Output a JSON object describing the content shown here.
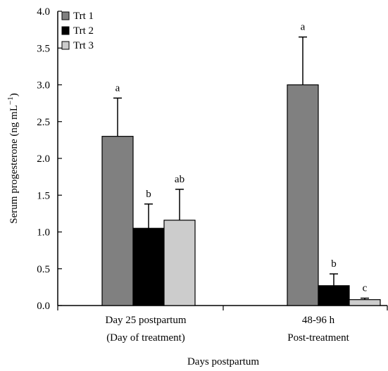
{
  "chart_data": {
    "type": "bar",
    "title": "",
    "ylabel": "Serum progesterone (ng mL",
    "ylabel_superscript": "−1",
    "ylabel_close": ")",
    "xlabel": "Days postpartum",
    "ylim": [
      0,
      4
    ],
    "yticks": [
      "0.0",
      "0.5",
      "1.0",
      "1.5",
      "2.0",
      "2.5",
      "3.0",
      "3.5",
      "4.0"
    ],
    "categories": [
      {
        "line1": "Day 25 postpartum",
        "line2": "(Day of treatment)"
      },
      {
        "line1": "48-96 h",
        "line2": "Post-treatment"
      }
    ],
    "series": [
      {
        "name": "Trt 1",
        "color": "#808080",
        "values": [
          2.3,
          3.0
        ],
        "errors": [
          0.52,
          0.65
        ],
        "labels": [
          "a",
          "a"
        ]
      },
      {
        "name": "Trt 2",
        "color": "#000000",
        "values": [
          1.05,
          0.27
        ],
        "errors": [
          0.33,
          0.16
        ],
        "labels": [
          "b",
          "b"
        ]
      },
      {
        "name": "Trt 3",
        "color": "#cccccc",
        "values": [
          1.16,
          0.08
        ],
        "errors": [
          0.42,
          0.02
        ],
        "labels": [
          "ab",
          "c"
        ]
      }
    ],
    "legend_position": "top-left",
    "grid": false
  }
}
